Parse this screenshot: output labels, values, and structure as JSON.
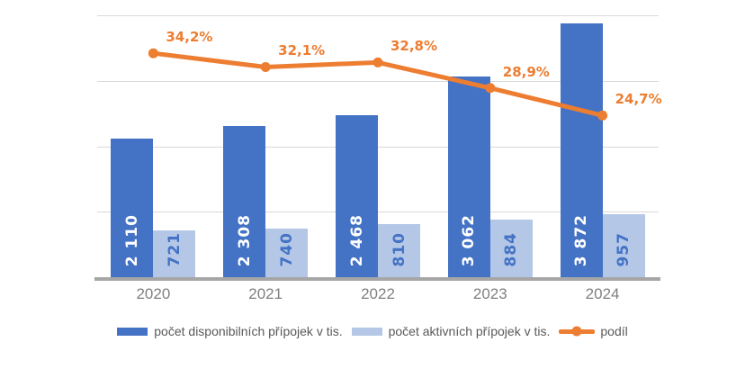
{
  "chart_data": {
    "type": "bar",
    "subtype": "combo-column-line",
    "title": "",
    "categories": [
      "2020",
      "2021",
      "2022",
      "2023",
      "2024"
    ],
    "series": [
      {
        "name": "počet disponibilních přípojek v tis.",
        "type": "column",
        "color": "#4472C4",
        "label_color": "#FFFFFF",
        "values": [
          2110,
          2308,
          2468,
          3062,
          3872
        ],
        "labels": [
          "2 110",
          "2 308",
          "2 468",
          "3 062",
          "3 872"
        ]
      },
      {
        "name": "počet aktivních přípojek v tis.",
        "type": "column",
        "color": "#B4C7E7",
        "label_color": "#4472C4",
        "values": [
          721,
          740,
          810,
          884,
          957
        ],
        "labels": [
          "721",
          "740",
          "810",
          "884",
          "957"
        ]
      },
      {
        "name": "podíl",
        "type": "line",
        "color": "#ED7D31",
        "label_color": "#ED7D31",
        "values": [
          34.2,
          32.1,
          32.8,
          28.9,
          24.7
        ],
        "labels": [
          "34,2%",
          "32,1%",
          "32,8%",
          "28,9%",
          "24,7%"
        ]
      }
    ],
    "value_axis": {
      "min": 0,
      "max": 4000,
      "grid_step": 1000,
      "labels_visible": false
    },
    "pct_axis": {
      "min": 0,
      "max": 40,
      "labels_visible": false
    },
    "grid": true,
    "legend_position": "bottom",
    "xlabel": "",
    "ylabel": ""
  },
  "colors": {
    "gridline": "#D9D9D9",
    "axis_line": "#A6A6A6",
    "tick_label": "#808080",
    "legend_text": "#595959"
  }
}
